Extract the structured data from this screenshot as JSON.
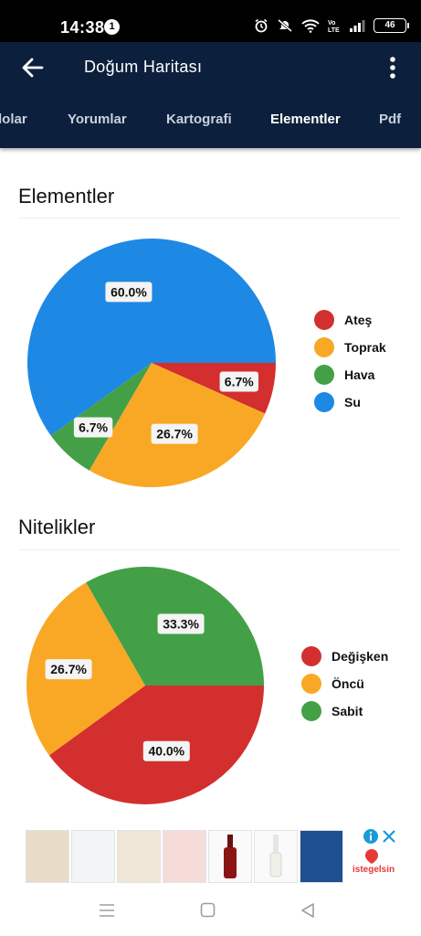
{
  "status": {
    "time": "14:38",
    "notification_count": "1",
    "battery": "46"
  },
  "appbar": {
    "title": "Doğum Haritası",
    "back_icon": "arrow-left-icon",
    "menu_icon": "more-vertical-icon"
  },
  "tabs": [
    {
      "label": "lolar"
    },
    {
      "label": "Yorumlar"
    },
    {
      "label": "Kartografi"
    },
    {
      "label": "Elementler",
      "active": true
    },
    {
      "label": "Pdf"
    }
  ],
  "sections": {
    "elements_title": "Elementler",
    "qualities_title": "Nitelikler"
  },
  "chart_data": [
    {
      "type": "pie",
      "categories": [
        "Ateş",
        "Toprak",
        "Hava",
        "Su"
      ],
      "values": [
        6.7,
        26.7,
        6.7,
        60.0
      ],
      "labels": [
        "6.7%",
        "26.7%",
        "6.7%",
        "60.0%"
      ],
      "colors": [
        "#d32f2f",
        "#f9a825",
        "#43a047",
        "#1e88e5"
      ],
      "legend": "right"
    },
    {
      "type": "pie",
      "categories": [
        "Değişken",
        "Öncü",
        "Sabit"
      ],
      "values": [
        40.0,
        26.7,
        33.3
      ],
      "labels": [
        "40.0%",
        "26.7%",
        "33.3%"
      ],
      "colors": [
        "#d32f2f",
        "#f9a825",
        "#43a047"
      ],
      "legend": "right"
    }
  ],
  "ad": {
    "brand": "istegelsin",
    "close_icon": "close-icon",
    "info_icon": "info-icon"
  }
}
